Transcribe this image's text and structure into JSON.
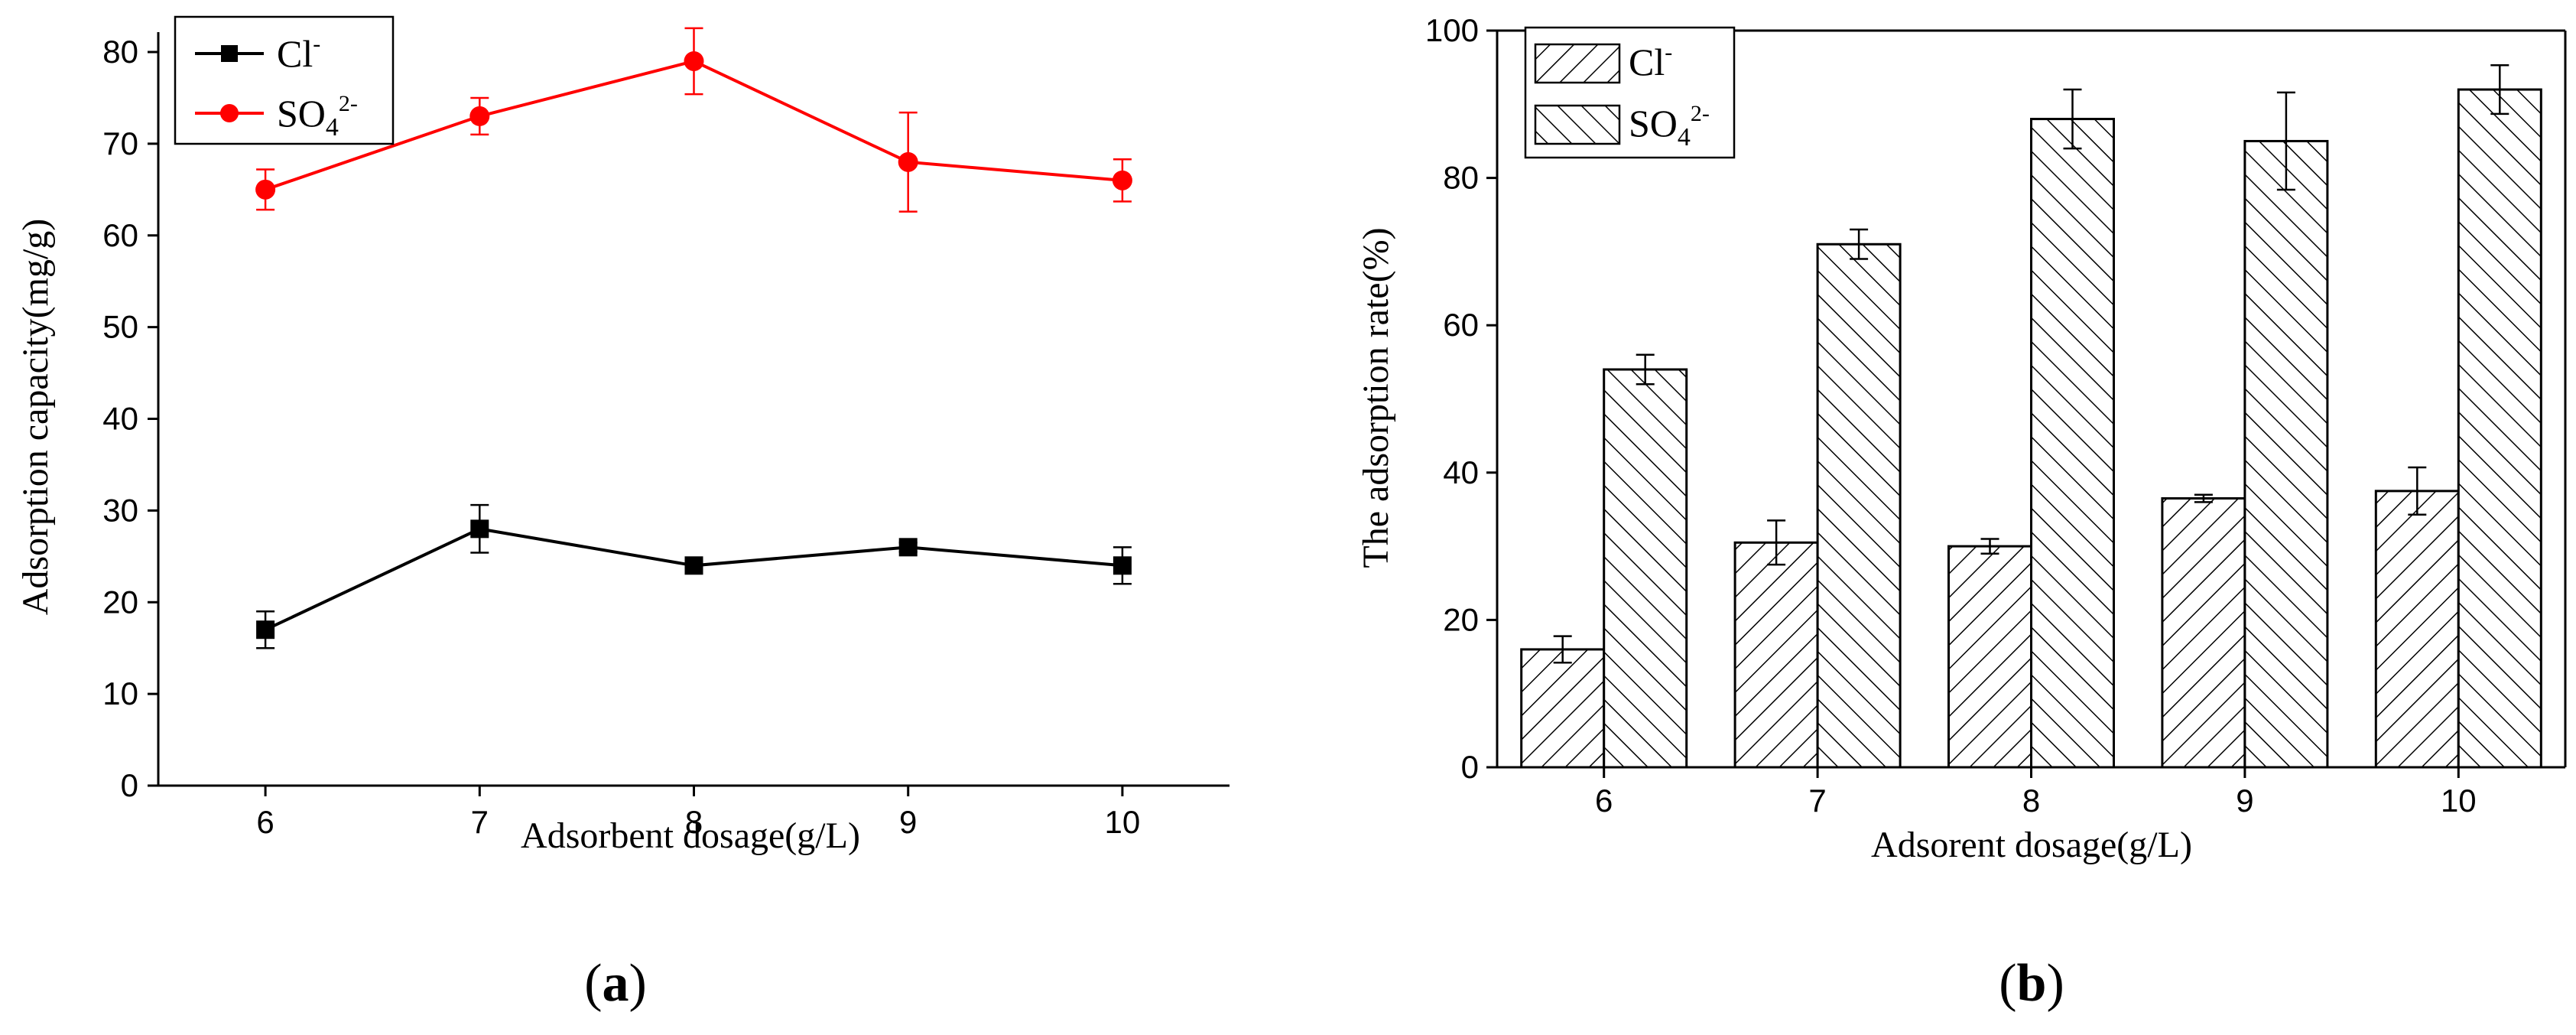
{
  "chart_data": [
    {
      "panel": "a",
      "type": "line",
      "panel_label": {
        "open": "(",
        "letter": "a",
        "close": ")"
      },
      "xlabel": "Adsorbent dosage(g/L)",
      "ylabel": "Adsorption capacity(mg/g)",
      "x": [
        6,
        7,
        8,
        9,
        10
      ],
      "x_tick_labels": [
        "6",
        "7",
        "8",
        "9",
        "10"
      ],
      "xlim": [
        5.5,
        10.5
      ],
      "ylim": [
        0,
        80
      ],
      "y_ticks": [
        0,
        10,
        20,
        30,
        40,
        50,
        60,
        70,
        80
      ],
      "legend_position": "top-left",
      "series": [
        {
          "name": "Cl",
          "superscript": "-",
          "subscript": "",
          "color": "#000000",
          "marker": "square",
          "values": [
            17,
            28,
            24,
            26,
            24
          ],
          "errors": [
            2.0,
            2.6,
            0.5,
            0.5,
            2.0
          ]
        },
        {
          "name": "SO",
          "superscript": "2-",
          "subscript": "4",
          "color": "#ff0000",
          "marker": "circle",
          "values": [
            65,
            73,
            79,
            68,
            66
          ],
          "errors": [
            2.2,
            2.0,
            3.6,
            5.4,
            2.3
          ]
        }
      ]
    },
    {
      "panel": "b",
      "type": "bar",
      "panel_label": {
        "open": "(",
        "letter": "b",
        "close": ")"
      },
      "xlabel": "Adsorent dosage(g/L)",
      "ylabel": "The adsorption rate(%)",
      "categories": [
        "6",
        "7",
        "8",
        "9",
        "10"
      ],
      "ylim": [
        0,
        100
      ],
      "y_ticks": [
        0,
        20,
        40,
        60,
        80,
        100
      ],
      "legend_position": "top-left",
      "series": [
        {
          "name": "Cl",
          "superscript": "-",
          "subscript": "",
          "pattern": "forward-hatch",
          "values": [
            16,
            30.5,
            30,
            36.5,
            37.5
          ],
          "errors": [
            1.8,
            3.0,
            1.0,
            0.5,
            3.2
          ]
        },
        {
          "name": "SO",
          "superscript": "2-",
          "subscript": "4",
          "pattern": "backward-hatch",
          "values": [
            54,
            71,
            88,
            85,
            92
          ],
          "errors": [
            2.0,
            2.0,
            4.0,
            6.6,
            3.3
          ]
        }
      ]
    }
  ]
}
